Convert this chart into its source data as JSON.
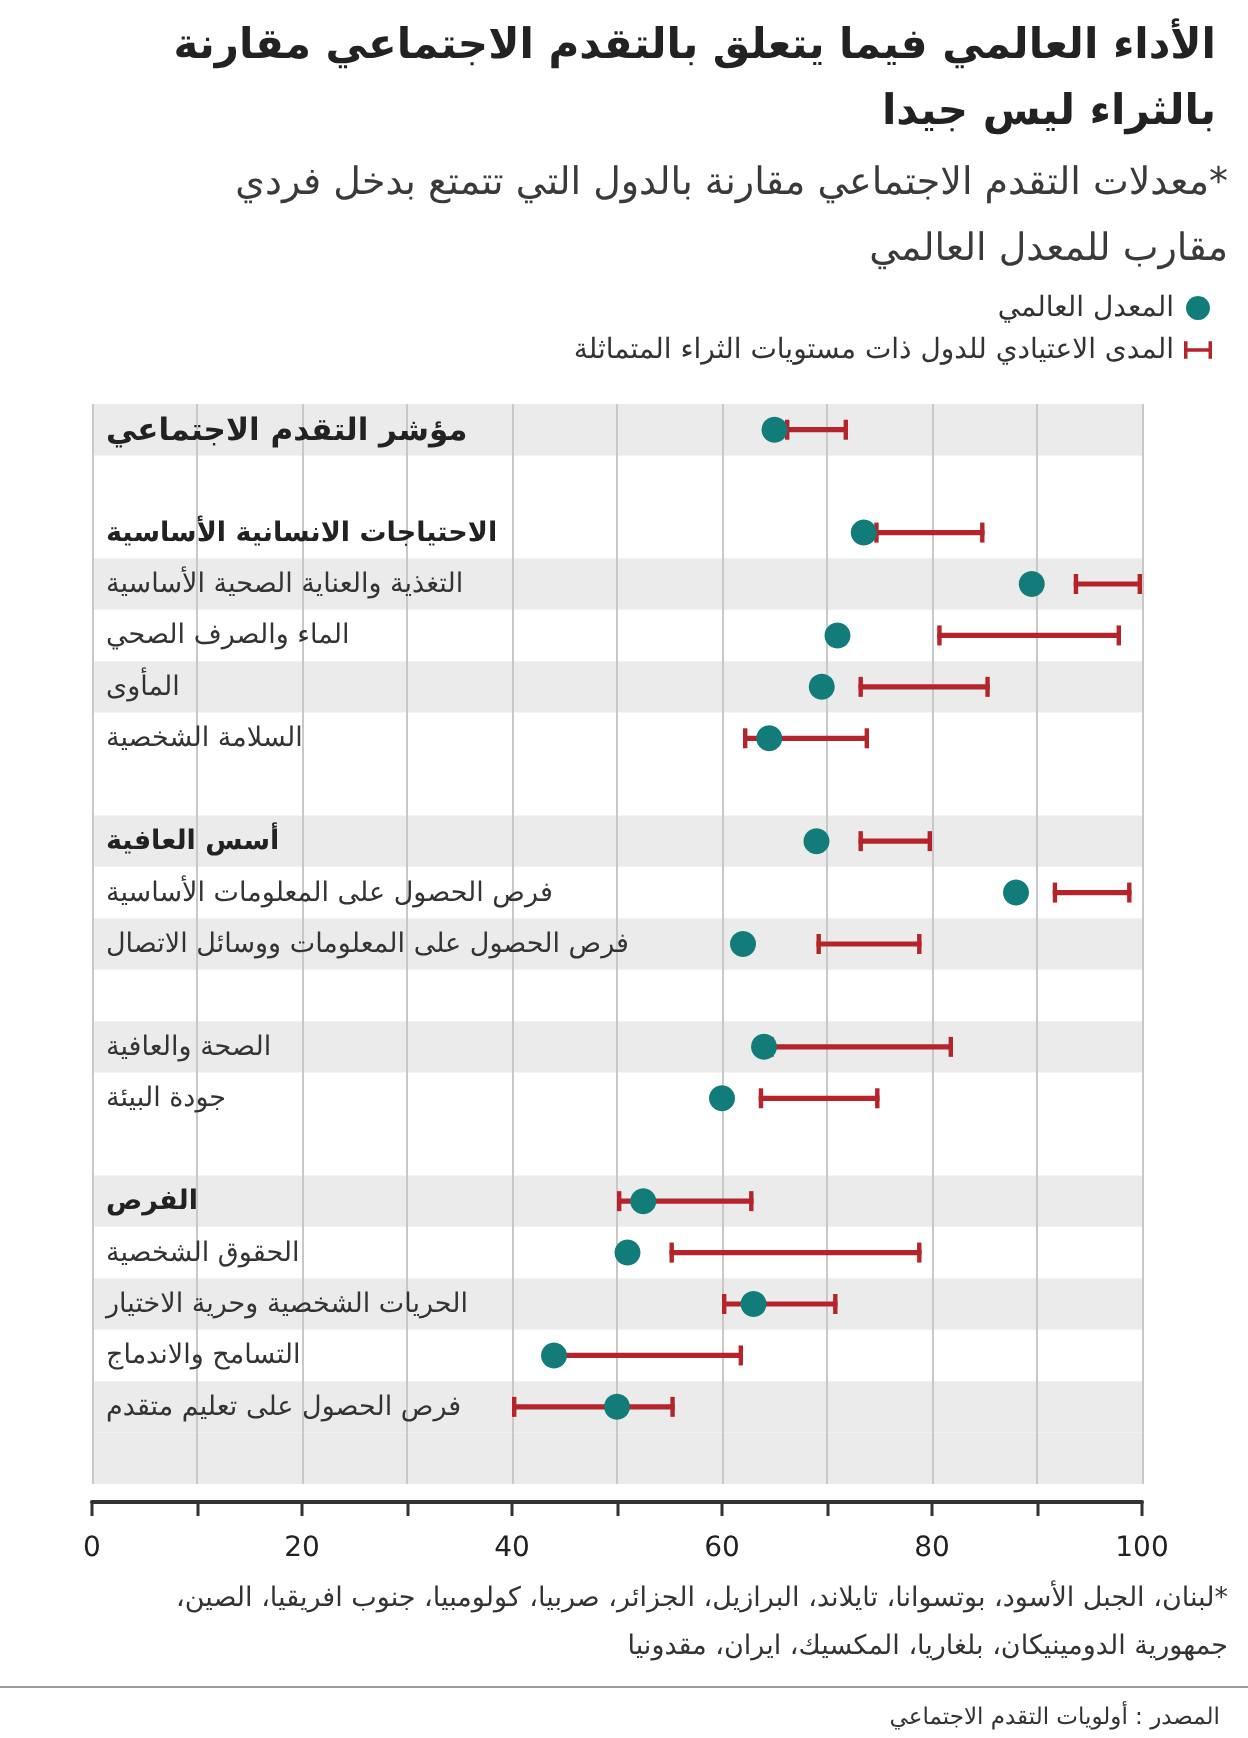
{
  "chart_data": {
    "type": "scatter",
    "orientation": "horizontal",
    "title": "الأداء العالمي فيما يتعلق بالتقدم الاجتماعي مقارنة بالثراء ليس جيدا",
    "subtitle": "*معدلات التقدم الاجتماعي مقارنة بالدول التي تتمتع بدخل فردي مقارب للمعدل العالمي",
    "categories": [
      "مؤشر التقدم الاجتماعي",
      null,
      "الاحتياجات الانسانية الأساسية",
      "التغذية والعناية الصحية الأساسية",
      "الماء والصرف الصحي",
      "المأوى",
      "السلامة الشخصية",
      null,
      "أسس العافية",
      "فرص الحصول على المعلومات الأساسية",
      "فرص الحصول على المعلومات ووسائل الاتصال",
      null,
      "الصحة والعافية",
      "جودة البيئة",
      null,
      "الفرص",
      "الحقوق الشخصية",
      "الحريات الشخصية وحرية الاختيار",
      "التسامح والاندماج",
      "فرص الحصول على تعليم متقدم",
      null
    ],
    "series": [
      {
        "name": "المعدل العالمي",
        "color": "#127c7a",
        "values": [
          65,
          null,
          73.5,
          89.5,
          71,
          69.5,
          64.5,
          null,
          69,
          88,
          62,
          null,
          64,
          60,
          null,
          52.5,
          51,
          63,
          44,
          50,
          null
        ]
      },
      {
        "name": "المدى الاعتيادي للدول ذات مستويات الثراء المتماثلة",
        "type": "bar",
        "color": "#b5242a",
        "base": [
          66,
          null,
          74.5,
          93.5,
          80.5,
          73,
          62,
          null,
          73,
          91.5,
          69,
          null,
          64.5,
          63.5,
          null,
          50,
          55,
          60,
          44,
          40,
          null
        ],
        "values": [
          6,
          null,
          10.5,
          6.5,
          17.5,
          12.5,
          12,
          null,
          7,
          7.5,
          10,
          null,
          17.5,
          11.5,
          null,
          13,
          24,
          11,
          18,
          15.5,
          null
        ]
      }
    ],
    "xlim": [
      0,
      100
    ],
    "xticks": [
      0,
      {
        "value": 10,
        "label": null
      },
      20,
      {
        "value": 30,
        "label": null
      },
      40,
      {
        "value": 50,
        "label": null
      },
      60,
      {
        "value": 70,
        "label": null
      },
      80,
      {
        "value": 90,
        "label": null
      },
      100
    ],
    "grid": "x",
    "legend": "top right",
    "marker": "circle",
    "annotations": [
      "*لبنان، الجبل الأسود، بوتسوانا، تايلاند، البرازيل، الجزائر، صربيا، كولومبيا، جنوب افريقيا، الصين، جمهورية الدومينيكان، بلغاريا، المكسيك، ايران، مقدونيا",
      "المصدر : أولويات التقدم الاجتماعي"
    ]
  }
}
